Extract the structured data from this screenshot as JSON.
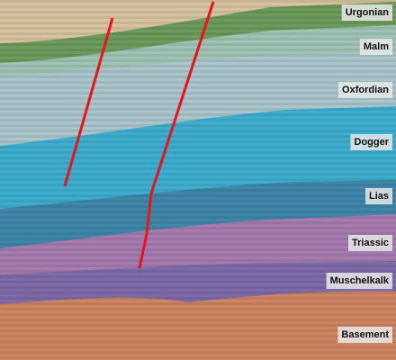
{
  "layers": [
    {
      "label": "Urgonian"
    },
    {
      "label": "Malm"
    },
    {
      "label": "Oxfordian"
    },
    {
      "label": "Dogger"
    },
    {
      "label": "Lias"
    },
    {
      "label": "Triassic"
    },
    {
      "label": "Muschelkalk"
    },
    {
      "label": "Basement"
    }
  ]
}
